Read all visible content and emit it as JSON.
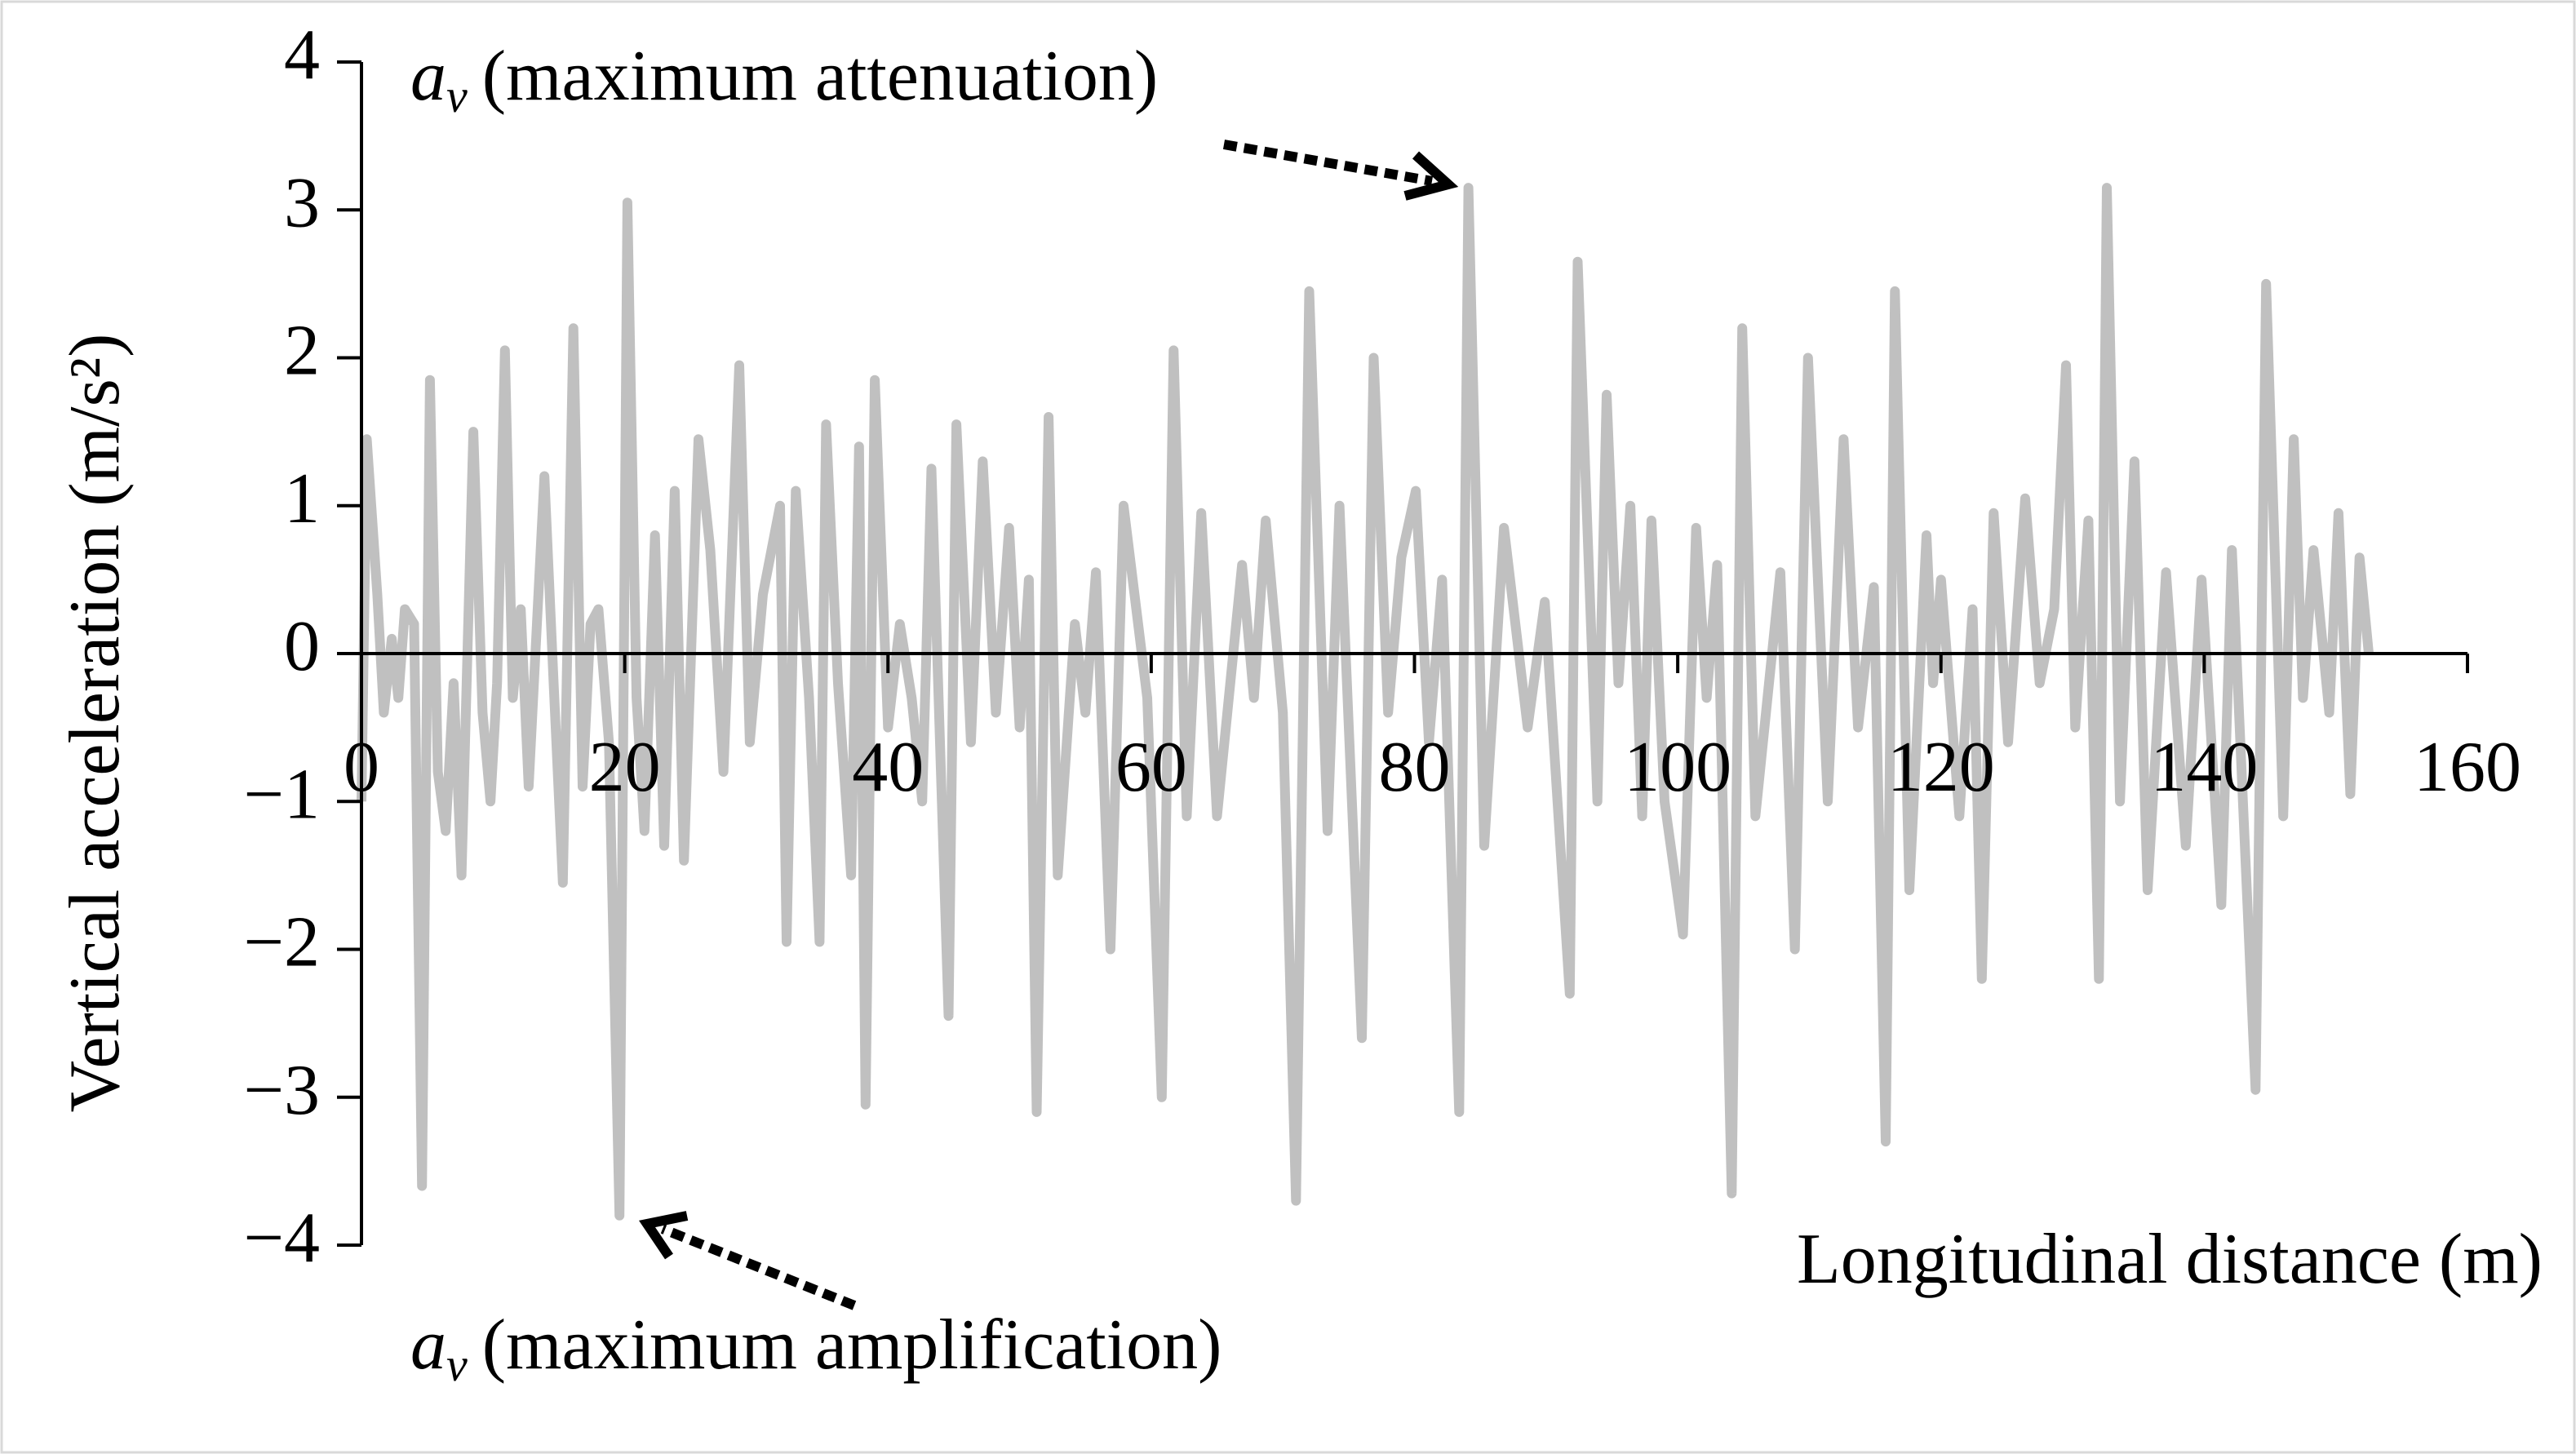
{
  "chart_data": {
    "type": "line",
    "y_label": "Vertical acceleration (m/s²)",
    "x_label": "Longitudinal distance (m)",
    "annotations": [
      {
        "symbol": "a",
        "subscript": "v",
        "text": "(maximum attenuation)"
      },
      {
        "symbol": "a",
        "subscript": "v",
        "text": "(maximum amplification)"
      }
    ],
    "color": "#c0c0c0",
    "x": [
      0,
      0.4,
      1.2,
      1.7,
      2.3,
      2.8,
      3.3,
      4.0,
      4.6,
      5.2,
      5.8,
      6.4,
      7.0,
      7.6,
      8.5,
      9.2,
      9.8,
      10.3,
      10.9,
      11.5,
      12.1,
      12.7,
      13.9,
      14.6,
      15.3,
      16.1,
      16.8,
      17.4,
      18.0,
      18.8,
      19.6,
      20.2,
      20.9,
      21.5,
      22.3,
      23.0,
      23.8,
      24.5,
      25.6,
      26.5,
      27.5,
      28.7,
      29.5,
      30.5,
      31.8,
      32.3,
      33.0,
      34.0,
      34.8,
      35.3,
      36.2,
      37.2,
      37.8,
      38.3,
      39.0,
      40.0,
      40.9,
      41.8,
      42.6,
      43.3,
      44.6,
      45.2,
      46.3,
      47.2,
      48.2,
      49.2,
      50.0,
      50.7,
      51.3,
      52.2,
      52.9,
      54.2,
      55.0,
      55.8,
      56.9,
      57.9,
      59.7,
      60.8,
      61.7,
      62.7,
      63.8,
      65.0,
      66.9,
      67.8,
      68.7,
      70.0,
      71.0,
      72.0,
      73.4,
      74.3,
      76.0,
      76.9,
      78.0,
      79.0,
      80.1,
      81.1,
      82.1,
      83.4,
      84.1,
      85.3,
      86.8,
      88.6,
      89.9,
      91.8,
      92.4,
      93.9,
      94.6,
      95.5,
      96.4,
      97.3,
      98.0,
      99.0,
      100.4,
      101.4,
      102.2,
      103.0,
      104.1,
      104.9,
      105.9,
      107.8,
      108.9,
      109.9,
      111.4,
      112.6,
      113.7,
      114.9,
      115.8,
      116.5,
      117.6,
      118.9,
      119.4,
      120.0,
      121.4,
      122.4,
      123.1,
      124.0,
      125.1,
      126.4,
      127.5,
      128.6,
      129.5,
      130.2,
      131.2,
      132.0,
      132.6,
      133.6,
      134.7,
      135.7,
      137.1,
      138.6,
      139.8,
      141.3,
      142.1,
      143.9,
      144.7,
      146.0,
      146.8,
      147.5,
      148.3,
      149.5,
      150.2,
      151.1,
      151.8,
      152.5
    ],
    "values": [
      -1.0,
      1.45,
      0.4,
      -0.4,
      0.1,
      -0.3,
      0.3,
      0.2,
      -3.6,
      1.85,
      -0.8,
      -1.2,
      -0.2,
      -1.5,
      1.5,
      -0.4,
      -1.0,
      -0.2,
      2.05,
      -0.3,
      0.3,
      -0.9,
      1.2,
      -0.2,
      -1.55,
      2.2,
      -0.9,
      0.2,
      0.3,
      -0.6,
      -3.8,
      3.05,
      -0.3,
      -1.2,
      0.8,
      -1.3,
      1.1,
      -1.4,
      1.45,
      0.7,
      -0.8,
      1.95,
      -0.6,
      0.4,
      1.0,
      -1.95,
      1.1,
      -0.3,
      -1.95,
      1.55,
      -0.2,
      -1.5,
      1.4,
      -3.05,
      1.85,
      -0.5,
      0.2,
      -0.3,
      -1.0,
      1.25,
      -2.45,
      1.55,
      -0.6,
      1.3,
      -0.4,
      0.85,
      -0.5,
      0.5,
      -3.1,
      1.6,
      -1.5,
      0.2,
      -0.4,
      0.55,
      -2.0,
      1.0,
      -0.3,
      -3.0,
      2.05,
      -1.1,
      0.95,
      -1.1,
      0.6,
      -0.3,
      0.9,
      -0.4,
      -3.7,
      2.45,
      -1.2,
      1.0,
      -2.6,
      2.0,
      -0.4,
      0.65,
      1.1,
      -0.6,
      0.5,
      -3.1,
      3.15,
      -1.3,
      0.85,
      -0.5,
      0.35,
      -2.3,
      2.65,
      -1.0,
      1.75,
      -0.2,
      1.0,
      -1.1,
      0.9,
      -1.0,
      -1.9,
      0.85,
      -0.3,
      0.6,
      -3.65,
      2.2,
      -1.1,
      0.55,
      -2.0,
      2.0,
      -1.0,
      1.45,
      -0.5,
      0.45,
      -3.3,
      2.45,
      -1.6,
      0.8,
      -0.2,
      0.5,
      -1.1,
      0.3,
      -2.2,
      0.95,
      -0.6,
      1.05,
      -0.2,
      0.3,
      1.95,
      -0.5,
      0.9,
      -2.2,
      3.15,
      -1.0,
      1.3,
      -1.6,
      0.55,
      -1.3,
      0.5,
      -1.7,
      0.7,
      -2.95,
      2.5,
      -1.1,
      1.45,
      -0.3,
      0.7,
      -0.4,
      0.95,
      -0.95,
      0.65,
      0
    ],
    "xlim": [
      0,
      160
    ],
    "xticks": [
      0,
      20,
      40,
      60,
      80,
      100,
      120,
      140,
      160
    ],
    "ylim": [
      -4,
      4
    ],
    "yticks": [
      {
        "value": -4,
        "label": "−4"
      },
      {
        "value": -3,
        "label": "−3"
      },
      {
        "value": -2,
        "label": "−2"
      },
      {
        "value": -1,
        "label": "−1"
      },
      0,
      1,
      2,
      3,
      4
    ]
  }
}
